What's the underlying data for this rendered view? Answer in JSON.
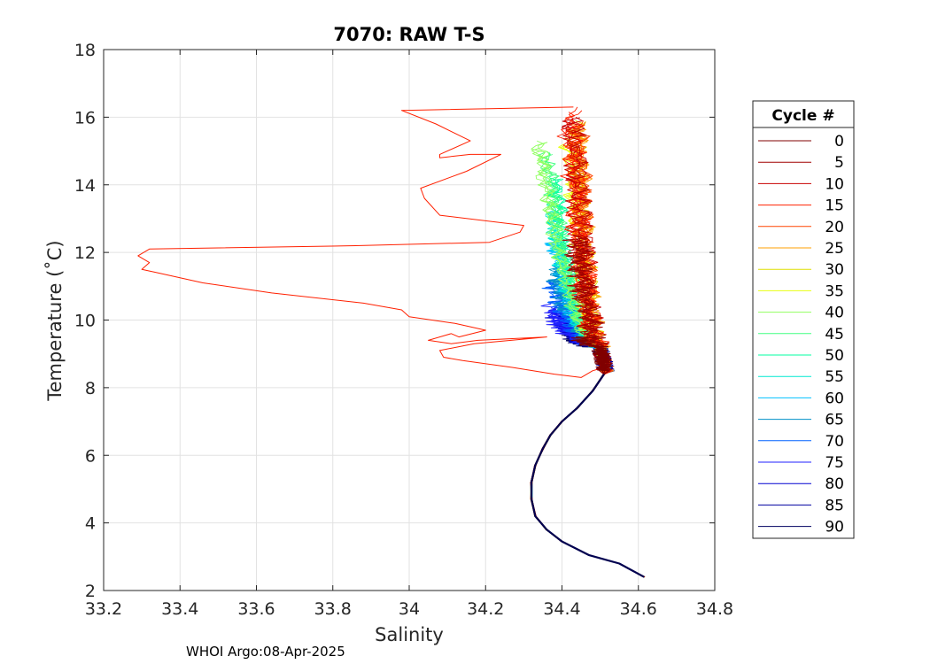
{
  "chart_data": {
    "type": "line",
    "title": "7070: RAW T-S",
    "xlabel": "Salinity",
    "ylabel": "Temperature (˚C)",
    "xlim": [
      33.2,
      34.8
    ],
    "ylim": [
      2,
      18
    ],
    "xticks": [
      33.2,
      33.4,
      33.6,
      33.8,
      34,
      34.2,
      34.4,
      34.6,
      34.8
    ],
    "xtick_labels": [
      "33.2",
      "33.4",
      "33.6",
      "33.8",
      "34",
      "34.2",
      "34.4",
      "34.6",
      "34.8"
    ],
    "yticks": [
      2,
      4,
      6,
      8,
      10,
      12,
      14,
      16,
      18
    ],
    "ytick_labels": [
      "2",
      "4",
      "6",
      "8",
      "10",
      "12",
      "14",
      "16",
      "18"
    ],
    "grid": true,
    "legend_title": "Cycle #",
    "legend_position": "outside-right",
    "series": [
      {
        "name": "0",
        "color": "#800000",
        "sst": 9.5,
        "s_surf": 34.45,
        "osc": 0.05
      },
      {
        "name": "5",
        "color": "#a00000",
        "sst": 12.5,
        "s_surf": 34.44,
        "osc": 0.05
      },
      {
        "name": "10",
        "color": "#c80000",
        "sst": 16.0,
        "s_surf": 34.43,
        "osc": 0.045
      },
      {
        "name": "15",
        "color": "#ff2000",
        "sst": 16.3,
        "s_surf": 34.42,
        "osc": 0.045,
        "anomaly": true
      },
      {
        "name": "20",
        "color": "#ff4500",
        "sst": 15.9,
        "s_surf": 34.44,
        "osc": 0.04
      },
      {
        "name": "25",
        "color": "#ff9f00",
        "sst": 15.8,
        "s_surf": 34.44,
        "osc": 0.04
      },
      {
        "name": "30",
        "color": "#dfdf00",
        "sst": 15.9,
        "s_surf": 34.44,
        "osc": 0.035
      },
      {
        "name": "35",
        "color": "#e8ff10",
        "sst": 15.4,
        "s_surf": 34.42,
        "osc": 0.035
      },
      {
        "name": "40",
        "color": "#90ff60",
        "sst": 15.3,
        "s_surf": 34.34,
        "osc": 0.03
      },
      {
        "name": "45",
        "color": "#40ff80",
        "sst": 15.0,
        "s_surf": 34.36,
        "osc": 0.03
      },
      {
        "name": "50",
        "color": "#00ffa0",
        "sst": 14.2,
        "s_surf": 34.38,
        "osc": 0.03
      },
      {
        "name": "55",
        "color": "#00e8d0",
        "sst": 13.4,
        "s_surf": 34.37,
        "osc": 0.03
      },
      {
        "name": "60",
        "color": "#00c0ff",
        "sst": 12.4,
        "s_surf": 34.38,
        "osc": 0.035
      },
      {
        "name": "65",
        "color": "#0090c8",
        "sst": 11.6,
        "s_surf": 34.38,
        "osc": 0.04
      },
      {
        "name": "70",
        "color": "#0060ff",
        "sst": 11.2,
        "s_surf": 34.37,
        "osc": 0.04
      },
      {
        "name": "75",
        "color": "#2020ff",
        "sst": 10.5,
        "s_surf": 34.37,
        "osc": 0.04
      },
      {
        "name": "80",
        "color": "#0000d0",
        "sst": 10.2,
        "s_surf": 34.39,
        "osc": 0.045
      },
      {
        "name": "85",
        "color": "#0000a0",
        "sst": 10.0,
        "s_surf": 34.41,
        "osc": 0.045
      },
      {
        "name": "90",
        "color": "#000060",
        "sst": 9.6,
        "s_surf": 34.43,
        "osc": 0.05
      }
    ],
    "deep_profile": {
      "S": [
        34.51,
        34.48,
        34.44,
        34.4,
        34.37,
        34.35,
        34.33,
        34.32,
        34.32,
        34.33,
        34.36,
        34.4,
        34.47,
        34.55,
        34.615
      ],
      "T": [
        8.4,
        7.9,
        7.4,
        7.0,
        6.6,
        6.2,
        5.7,
        5.2,
        4.7,
        4.2,
        3.8,
        3.45,
        3.05,
        2.8,
        2.4
      ]
    },
    "anomaly_profile": {
      "S": [
        34.43,
        33.98,
        34.07,
        34.16,
        34.08,
        34.08,
        34.16,
        34.24,
        34.15,
        34.03,
        34.04,
        34.08,
        34.3,
        34.29,
        34.21,
        33.86,
        33.32,
        33.29,
        33.32,
        33.3,
        33.34,
        33.46,
        33.64,
        33.88,
        33.98,
        34.0,
        34.12,
        34.2,
        34.13,
        34.11,
        34.05,
        34.11,
        34.18,
        34.36,
        34.17,
        34.08,
        34.09,
        34.14,
        34.27,
        34.38,
        34.45,
        34.48,
        34.51
      ],
      "T": [
        16.3,
        16.2,
        15.8,
        15.3,
        14.9,
        14.8,
        14.9,
        14.9,
        14.4,
        13.9,
        13.6,
        13.1,
        12.8,
        12.6,
        12.3,
        12.2,
        12.1,
        11.9,
        11.7,
        11.5,
        11.4,
        11.1,
        10.8,
        10.5,
        10.3,
        10.1,
        9.9,
        9.7,
        9.5,
        9.6,
        9.4,
        9.3,
        9.4,
        9.5,
        9.3,
        9.1,
        8.9,
        8.8,
        8.6,
        8.4,
        8.3,
        8.5,
        8.6
      ]
    }
  },
  "footer_text": "WHOI Argo:08-Apr-2025"
}
